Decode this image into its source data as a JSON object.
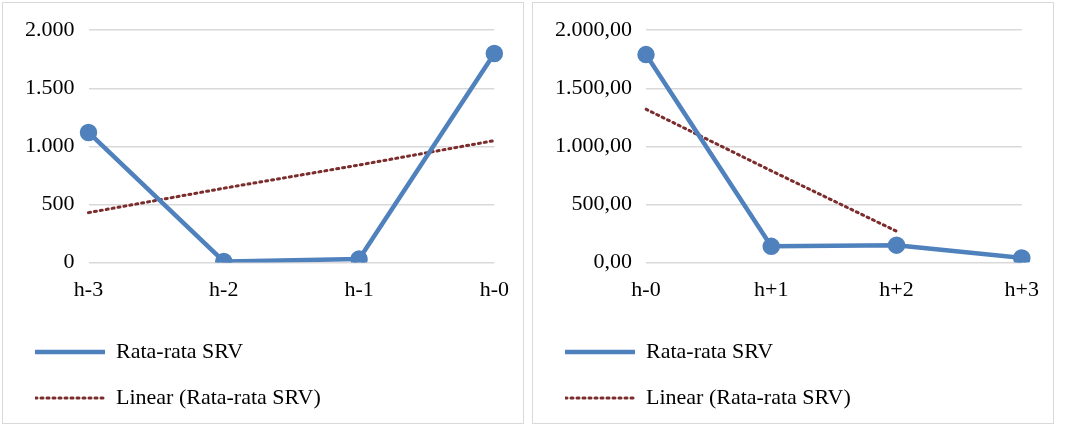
{
  "chart_data": [
    {
      "type": "line",
      "categories": [
        "h-3",
        "h-2",
        "h-1",
        "h-0"
      ],
      "ylim": [
        0,
        2000
      ],
      "yticks": [
        0,
        {
          "value": 500,
          "label": "500"
        },
        {
          "value": 1000,
          "label": "1.000"
        },
        {
          "value": 1500,
          "label": "1.500"
        },
        {
          "value": 2000,
          "label": "2.000"
        }
      ],
      "grid": "y",
      "legend": "bottom",
      "marker": "circle",
      "line_style": "solid",
      "series": [
        {
          "name": "Rata-rata SRV",
          "color": "#4f81bd",
          "values": [
            1120,
            10,
            30,
            1800
          ]
        },
        {
          "name": "Linear (Rata-rata SRV)",
          "type": "line",
          "color": "#7b2c2c",
          "marker": "none",
          "line_style": "dotted",
          "values": [
            430,
            640,
            840,
            1050
          ]
        }
      ]
    },
    {
      "type": "line",
      "categories": [
        "h-0",
        "h+1",
        "h+2",
        "h+3"
      ],
      "ylim": [
        0,
        2000
      ],
      "yticks": [
        {
          "value": 0,
          "label": "0,00"
        },
        {
          "value": 500,
          "label": "500,00"
        },
        {
          "value": 1000,
          "label": "1.000,00"
        },
        {
          "value": 1500,
          "label": "1.500,00"
        },
        {
          "value": 2000,
          "label": "2.000,00"
        }
      ],
      "grid": "y",
      "legend": "bottom",
      "marker": "circle",
      "line_style": "solid",
      "series": [
        {
          "name": "Rata-rata SRV",
          "color": "#4f81bd",
          "values": [
            1790,
            140,
            150,
            40
          ]
        },
        {
          "name": "Linear (Rata-rata SRV)",
          "type": "line",
          "color": "#7b2c2c",
          "marker": "none",
          "line_style": "dotted",
          "values": [
            1320,
            790,
            270,
            null
          ]
        }
      ]
    }
  ]
}
